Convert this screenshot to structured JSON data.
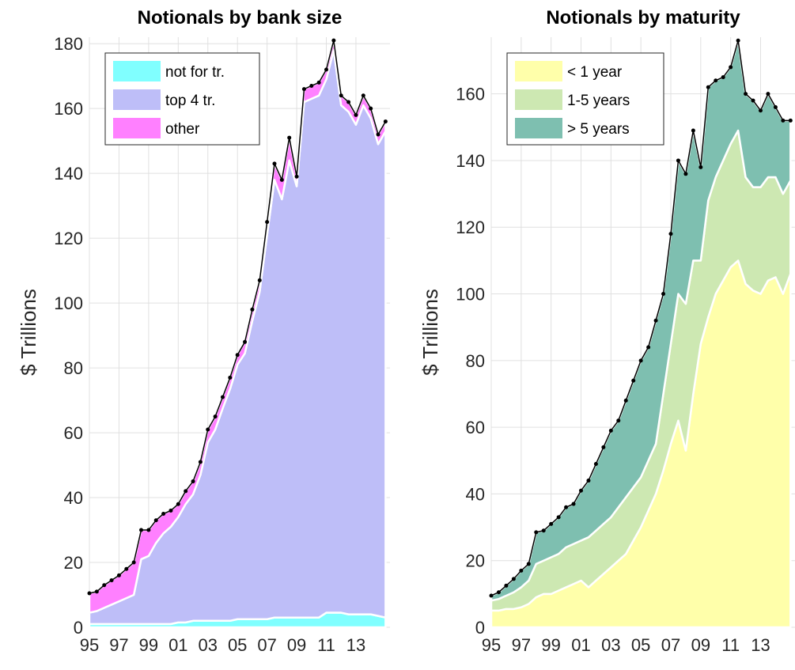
{
  "chart_data": [
    {
      "type": "area",
      "stacked": true,
      "title": "Notionals by bank size",
      "y_label": "$ Trillions",
      "grid": true,
      "legend": "upper left",
      "total_line": true,
      "x": [
        1995,
        1995.5,
        1996,
        1996.5,
        1997,
        1997.5,
        1998,
        1998.5,
        1999,
        1999.5,
        2000,
        2000.5,
        2001,
        2001.5,
        2002,
        2002.5,
        2003,
        2003.5,
        2004,
        2004.5,
        2005,
        2005.5,
        2006,
        2006.5,
        2007,
        2007.5,
        2008,
        2008.5,
        2009,
        2009.5,
        2010,
        2010.5,
        2011,
        2011.5,
        2012,
        2012.5,
        2013,
        2013.5,
        2014,
        2014.5,
        2015
      ],
      "xlim": [
        1995,
        2015.3
      ],
      "xticks": [
        {
          "value": 1995,
          "label": "95"
        },
        {
          "value": 1997,
          "label": "97"
        },
        {
          "value": 1999,
          "label": "99"
        },
        {
          "value": 2001,
          "label": "01"
        },
        {
          "value": 2003,
          "label": "03"
        },
        {
          "value": 2005,
          "label": "05"
        },
        {
          "value": 2007,
          "label": "07"
        },
        {
          "value": 2009,
          "label": "09"
        },
        {
          "value": 2011,
          "label": "11"
        },
        {
          "value": 2013,
          "label": "13"
        }
      ],
      "ylim": [
        0,
        182
      ],
      "yticks": [
        0,
        20,
        40,
        60,
        80,
        100,
        120,
        140,
        160,
        180
      ],
      "series": [
        {
          "name": "not for tr.",
          "color": "#80ffff",
          "values": [
            1,
            1,
            1,
            1,
            1,
            1,
            1,
            1,
            1,
            1,
            1,
            1,
            1.5,
            1.5,
            2,
            2,
            2,
            2,
            2,
            2,
            2.5,
            2.5,
            2.5,
            2.5,
            2.5,
            3,
            3,
            3,
            3,
            3,
            3,
            3,
            4.5,
            4.5,
            4.5,
            4,
            4,
            4,
            4,
            3.5,
            3
          ]
        },
        {
          "name": "top 4 tr.",
          "color": "#bebef8",
          "values": [
            3.5,
            4,
            5,
            6,
            7,
            8,
            9,
            20,
            21,
            25,
            28,
            30,
            32.5,
            36.5,
            39,
            45,
            55,
            59,
            65.5,
            71.5,
            78.5,
            82,
            92,
            101,
            118.5,
            135,
            129,
            141,
            133,
            159,
            160,
            161,
            164.5,
            173.5,
            156.5,
            155,
            151,
            157,
            153,
            145.5,
            150
          ]
        },
        {
          "name": "other",
          "color": "#ff80ff",
          "values": [
            6,
            6,
            7,
            7.5,
            8,
            9,
            10,
            9,
            8,
            7,
            6,
            5,
            4,
            4,
            4,
            4,
            4,
            4,
            3.5,
            3.5,
            3,
            3.5,
            3.5,
            3.5,
            4,
            5,
            6,
            7,
            3,
            4,
            4,
            4,
            3,
            3,
            3,
            3,
            3,
            3,
            3,
            3,
            3
          ]
        }
      ]
    },
    {
      "type": "area",
      "stacked": true,
      "title": "Notionals by maturity",
      "y_label": "$ Trillions",
      "grid": true,
      "legend": "upper left",
      "total_line": true,
      "x": [
        1995,
        1995.5,
        1996,
        1996.5,
        1997,
        1997.5,
        1998,
        1998.5,
        1999,
        1999.5,
        2000,
        2000.5,
        2001,
        2001.5,
        2002,
        2002.5,
        2003,
        2003.5,
        2004,
        2004.5,
        2005,
        2005.5,
        2006,
        2006.5,
        2007,
        2007.5,
        2008,
        2008.5,
        2009,
        2009.5,
        2010,
        2010.5,
        2011,
        2011.5,
        2012,
        2012.5,
        2013,
        2013.5,
        2014,
        2014.5,
        2015
      ],
      "xlim": [
        1995,
        2015.3
      ],
      "xticks": [
        {
          "value": 1995,
          "label": "95"
        },
        {
          "value": 1997,
          "label": "97"
        },
        {
          "value": 1999,
          "label": "99"
        },
        {
          "value": 2001,
          "label": "01"
        },
        {
          "value": 2003,
          "label": "03"
        },
        {
          "value": 2005,
          "label": "05"
        },
        {
          "value": 2007,
          "label": "07"
        },
        {
          "value": 2009,
          "label": "09"
        },
        {
          "value": 2011,
          "label": "11"
        },
        {
          "value": 2013,
          "label": "13"
        }
      ],
      "ylim": [
        0,
        177
      ],
      "yticks": [
        0,
        20,
        40,
        60,
        80,
        100,
        120,
        140,
        160
      ],
      "series": [
        {
          "name": "< 1 year",
          "color": "#ffffaa",
          "values": [
            5,
            5,
            5.5,
            5.5,
            6,
            7,
            9,
            10,
            10,
            11,
            12,
            13,
            14,
            12,
            14,
            16,
            18,
            20,
            22,
            26,
            30,
            35,
            40,
            47,
            55,
            62,
            53,
            70,
            85,
            93,
            100,
            104,
            108,
            110,
            103,
            101,
            100,
            104,
            105,
            100,
            106
          ]
        },
        {
          "name": "1-5 years",
          "color": "#cde8b2",
          "values": [
            3,
            3.5,
            4,
            5,
            6,
            7,
            10,
            10,
            11,
            11,
            12,
            12,
            12,
            15,
            15,
            15,
            15,
            16,
            17,
            16,
            15,
            15,
            15,
            23,
            30,
            38,
            44,
            40,
            25,
            35,
            35,
            36,
            37,
            39,
            32,
            31,
            32,
            31,
            30,
            30,
            28
          ]
        },
        {
          "name": "> 5 years",
          "color": "#7ebfb0",
          "values": [
            1.5,
            2,
            3,
            4,
            5,
            5,
            9.5,
            9,
            10,
            11,
            12,
            12,
            15,
            17,
            20,
            23,
            26,
            26,
            29,
            32,
            35,
            34,
            37,
            30,
            33,
            40,
            39,
            39,
            28,
            34,
            29,
            25,
            23,
            27,
            25,
            26,
            23,
            25,
            21,
            22,
            18
          ]
        }
      ]
    }
  ]
}
